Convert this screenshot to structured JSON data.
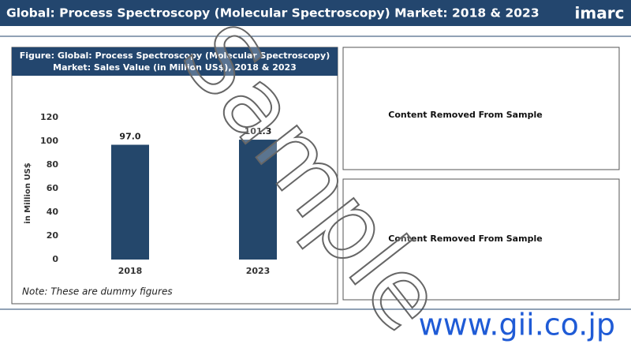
{
  "header": {
    "title": "Global: Process Spectroscopy (Molecular Spectroscopy) Market: 2018 & 2023",
    "logo": "imarc"
  },
  "chart_data": {
    "type": "bar",
    "title": "Figure: Global: Process Spectroscopy (Molecular Spectroscopy) Market: Sales Value (in Million US$), 2018 & 2023",
    "ylabel": "in Million US$",
    "categories": [
      "2018",
      "2023"
    ],
    "values": [
      97,
      101.3
    ],
    "value_labels": [
      "97.0",
      "101.3"
    ],
    "color": "#24476b",
    "ylim": [
      0,
      120
    ],
    "yticks": [
      0,
      20,
      40,
      60,
      80,
      100,
      120
    ],
    "grid": false,
    "note": "Note: These are dummy figures"
  },
  "panels": [
    "Content Removed From Sample",
    "Content Removed From Sample"
  ],
  "watermark": "Sample",
  "footer": "www.gii.co.jp"
}
